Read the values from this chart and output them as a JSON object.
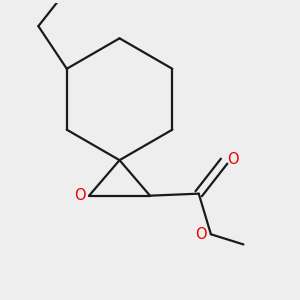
{
  "background_color": "#eeeeee",
  "bond_color": "#1a1a1a",
  "oxygen_color": "#ee0000",
  "line_width": 1.6,
  "figsize": [
    3.0,
    3.0
  ],
  "dpi": 100,
  "xlim": [
    -1.0,
    1.6
  ],
  "ylim": [
    -1.4,
    1.5
  ]
}
